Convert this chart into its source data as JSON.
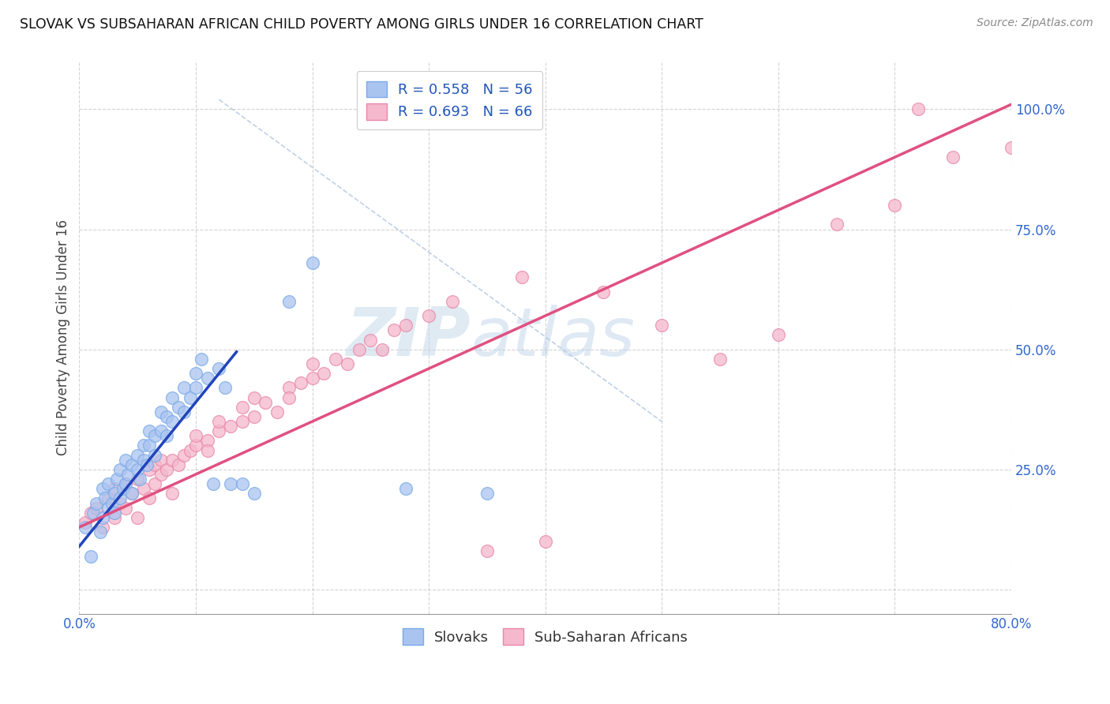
{
  "title": "SLOVAK VS SUBSAHARAN AFRICAN CHILD POVERTY AMONG GIRLS UNDER 16 CORRELATION CHART",
  "source": "Source: ZipAtlas.com",
  "ylabel": "Child Poverty Among Girls Under 16",
  "xlim": [
    0.0,
    0.8
  ],
  "ylim": [
    -0.05,
    1.1
  ],
  "x_ticks": [
    0.0,
    0.1,
    0.2,
    0.3,
    0.4,
    0.5,
    0.6,
    0.7,
    0.8
  ],
  "y_ticks": [
    0.0,
    0.25,
    0.5,
    0.75,
    1.0
  ],
  "background_color": "#ffffff",
  "grid_color": "#c8c8c8",
  "watermark_text": "ZIPatlas",
  "legend_r1": "R = 0.558   N = 56",
  "legend_r2": "R = 0.693   N = 66",
  "legend_label1": "Slovaks",
  "legend_label2": "Sub-Saharan Africans",
  "blue_fill": "#aac4f0",
  "blue_edge": "#7aaae8",
  "blue_line": "#2244bb",
  "pink_fill": "#f5b8cc",
  "pink_edge": "#e888a8",
  "pink_line": "#e05080",
  "ref_line_color": "#b8cce4",
  "slovaks_x": [
    0.005,
    0.01,
    0.012,
    0.015,
    0.018,
    0.02,
    0.02,
    0.022,
    0.025,
    0.025,
    0.028,
    0.03,
    0.03,
    0.032,
    0.035,
    0.035,
    0.038,
    0.04,
    0.04,
    0.042,
    0.045,
    0.045,
    0.05,
    0.05,
    0.052,
    0.055,
    0.055,
    0.058,
    0.06,
    0.06,
    0.065,
    0.065,
    0.07,
    0.07,
    0.075,
    0.075,
    0.08,
    0.08,
    0.085,
    0.09,
    0.09,
    0.095,
    0.1,
    0.1,
    0.105,
    0.11,
    0.115,
    0.12,
    0.125,
    0.13,
    0.14,
    0.15,
    0.18,
    0.2,
    0.28,
    0.35
  ],
  "slovaks_y": [
    0.13,
    0.07,
    0.16,
    0.18,
    0.12,
    0.15,
    0.21,
    0.19,
    0.17,
    0.22,
    0.18,
    0.16,
    0.2,
    0.23,
    0.19,
    0.25,
    0.21,
    0.22,
    0.27,
    0.24,
    0.2,
    0.26,
    0.25,
    0.28,
    0.23,
    0.27,
    0.3,
    0.26,
    0.3,
    0.33,
    0.28,
    0.32,
    0.33,
    0.37,
    0.32,
    0.36,
    0.35,
    0.4,
    0.38,
    0.37,
    0.42,
    0.4,
    0.42,
    0.45,
    0.48,
    0.44,
    0.22,
    0.46,
    0.42,
    0.22,
    0.22,
    0.2,
    0.6,
    0.68,
    0.21,
    0.2
  ],
  "african_x": [
    0.005,
    0.01,
    0.015,
    0.02,
    0.025,
    0.03,
    0.03,
    0.035,
    0.04,
    0.04,
    0.045,
    0.05,
    0.05,
    0.055,
    0.06,
    0.06,
    0.065,
    0.065,
    0.07,
    0.07,
    0.075,
    0.08,
    0.08,
    0.085,
    0.09,
    0.095,
    0.1,
    0.1,
    0.11,
    0.11,
    0.12,
    0.12,
    0.13,
    0.14,
    0.14,
    0.15,
    0.15,
    0.16,
    0.17,
    0.18,
    0.18,
    0.19,
    0.2,
    0.2,
    0.21,
    0.22,
    0.23,
    0.24,
    0.25,
    0.26,
    0.27,
    0.28,
    0.3,
    0.32,
    0.35,
    0.38,
    0.4,
    0.45,
    0.5,
    0.55,
    0.6,
    0.65,
    0.7,
    0.72,
    0.75,
    0.8
  ],
  "african_y": [
    0.14,
    0.16,
    0.17,
    0.13,
    0.19,
    0.15,
    0.21,
    0.18,
    0.17,
    0.22,
    0.2,
    0.15,
    0.23,
    0.21,
    0.19,
    0.25,
    0.22,
    0.26,
    0.24,
    0.27,
    0.25,
    0.2,
    0.27,
    0.26,
    0.28,
    0.29,
    0.3,
    0.32,
    0.31,
    0.29,
    0.33,
    0.35,
    0.34,
    0.35,
    0.38,
    0.36,
    0.4,
    0.39,
    0.37,
    0.42,
    0.4,
    0.43,
    0.44,
    0.47,
    0.45,
    0.48,
    0.47,
    0.5,
    0.52,
    0.5,
    0.54,
    0.55,
    0.57,
    0.6,
    0.08,
    0.65,
    0.1,
    0.62,
    0.55,
    0.48,
    0.53,
    0.76,
    0.8,
    1.0,
    0.9,
    0.92
  ],
  "sk_line_x": [
    0.0,
    0.135
  ],
  "sk_line_slope": 3.0,
  "sk_line_intercept": 0.09,
  "af_line_x0": 0.0,
  "af_line_x1": 0.8,
  "af_line_slope": 1.1,
  "af_line_intercept": 0.13
}
